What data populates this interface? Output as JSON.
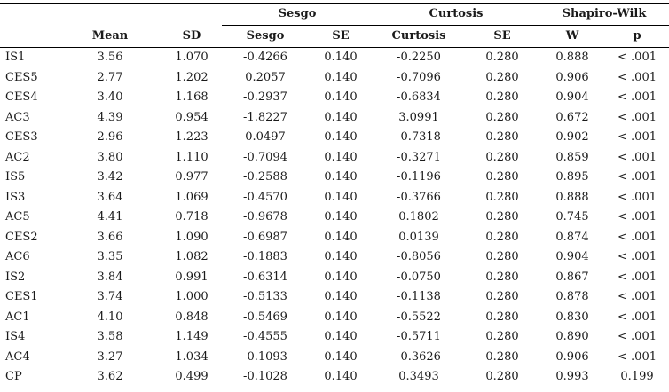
{
  "table": {
    "group_headers": {
      "sesgo": "Sesgo",
      "curtosis": "Curtosis",
      "shapiro": "Shapiro-Wilk"
    },
    "columns": [
      "",
      "Mean",
      "SD",
      "Sesgo",
      "SE",
      "Curtosis",
      "SE",
      "W",
      "p"
    ],
    "rows": [
      [
        "IS1",
        "3.56",
        "1.070",
        "-0.4266",
        "0.140",
        "-0.2250",
        "0.280",
        "0.888",
        "< .001"
      ],
      [
        "CES5",
        "2.77",
        "1.202",
        "0.2057",
        "0.140",
        "-0.7096",
        "0.280",
        "0.906",
        "< .001"
      ],
      [
        "CES4",
        "3.40",
        "1.168",
        "-0.2937",
        "0.140",
        "-0.6834",
        "0.280",
        "0.904",
        "< .001"
      ],
      [
        "AC3",
        "4.39",
        "0.954",
        "-1.8227",
        "0.140",
        "3.0991",
        "0.280",
        "0.672",
        "< .001"
      ],
      [
        "CES3",
        "2.96",
        "1.223",
        "0.0497",
        "0.140",
        "-0.7318",
        "0.280",
        "0.902",
        "< .001"
      ],
      [
        "AC2",
        "3.80",
        "1.110",
        "-0.7094",
        "0.140",
        "-0.3271",
        "0.280",
        "0.859",
        "< .001"
      ],
      [
        "IS5",
        "3.42",
        "0.977",
        "-0.2588",
        "0.140",
        "-0.1196",
        "0.280",
        "0.895",
        "< .001"
      ],
      [
        "IS3",
        "3.64",
        "1.069",
        "-0.4570",
        "0.140",
        "-0.3766",
        "0.280",
        "0.888",
        "< .001"
      ],
      [
        "AC5",
        "4.41",
        "0.718",
        "-0.9678",
        "0.140",
        "0.1802",
        "0.280",
        "0.745",
        "< .001"
      ],
      [
        "CES2",
        "3.66",
        "1.090",
        "-0.6987",
        "0.140",
        "0.0139",
        "0.280",
        "0.874",
        "< .001"
      ],
      [
        "AC6",
        "3.35",
        "1.082",
        "-0.1883",
        "0.140",
        "-0.8056",
        "0.280",
        "0.904",
        "< .001"
      ],
      [
        "IS2",
        "3.84",
        "0.991",
        "-0.6314",
        "0.140",
        "-0.0750",
        "0.280",
        "0.867",
        "< .001"
      ],
      [
        "CES1",
        "3.74",
        "1.000",
        "-0.5133",
        "0.140",
        "-0.1138",
        "0.280",
        "0.878",
        "< .001"
      ],
      [
        "AC1",
        "4.10",
        "0.848",
        "-0.5469",
        "0.140",
        "-0.5522",
        "0.280",
        "0.830",
        "< .001"
      ],
      [
        "IS4",
        "3.58",
        "1.149",
        "-0.4555",
        "0.140",
        "-0.5711",
        "0.280",
        "0.890",
        "< .001"
      ],
      [
        "AC4",
        "3.27",
        "1.034",
        "-0.1093",
        "0.140",
        "-0.3626",
        "0.280",
        "0.906",
        "< .001"
      ],
      [
        "CP",
        "3.62",
        "0.499",
        "-0.1028",
        "0.140",
        "0.3493",
        "0.280",
        "0.993",
        "0.199"
      ]
    ]
  }
}
